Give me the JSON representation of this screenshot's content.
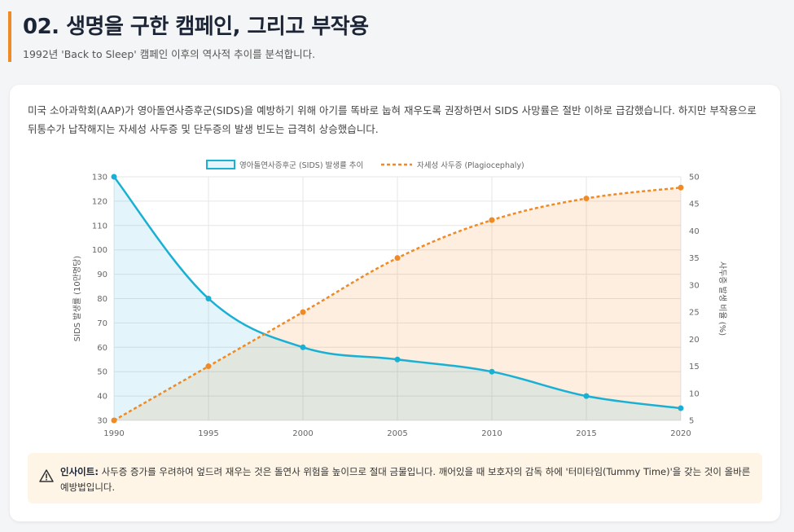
{
  "header": {
    "title": "02. 생명을 구한 캠페인, 그리고 부작용",
    "subtitle": "1992년 'Back to Sleep' 캠페인 이후의 역사적 추이를 분석합니다."
  },
  "description": "미국 소아과학회(AAP)가 영아돌연사증후군(SIDS)을 예방하기 위해 아기를 똑바로 눕혀 재우도록 권장하면서 SIDS 사망률은 절반 이하로 급감했습니다. 하지만 부작용으로 뒤통수가 납작해지는 자세성 사두증 및 단두증의 발생 빈도는 급격히 상승했습니다.",
  "insight": {
    "label": "인사이트:",
    "text": "사두증 증가를 우려하여 엎드려 재우는 것은 돌연사 위험을 높이므로 절대 금물입니다. 깨어있을 때 보호자의 감독 하에 '터미타임(Tummy Time)'을 갖는 것이 올바른 예방법입니다."
  },
  "colors": {
    "sids": "#1ab0d4",
    "sids_fill": "rgba(26,176,212,0.12)",
    "plagio": "#f08a24",
    "plagio_fill": "rgba(240,138,36,0.14)",
    "grid": "#e6e6e6"
  },
  "chart_data": {
    "type": "line",
    "x": [
      1990,
      1995,
      2000,
      2005,
      2010,
      2015,
      2020
    ],
    "series": [
      {
        "name": "영아돌연사증후군 (SIDS) 발생률 추이",
        "axis": "left",
        "values": [
          130,
          80,
          60,
          55,
          50,
          40,
          35
        ]
      },
      {
        "name": "자세성 사두증 (Plagiocephaly)",
        "axis": "right",
        "values": [
          5,
          15,
          25,
          35,
          42,
          46,
          48
        ]
      }
    ],
    "ylabel": "SIDS 발생률 (10만명당)",
    "y2label": "사두증 발생 비율 (%)",
    "ylim": [
      30,
      130
    ],
    "ystep": 10,
    "y2lim": [
      5,
      50
    ],
    "y2step": 5,
    "legend": "top-center"
  }
}
